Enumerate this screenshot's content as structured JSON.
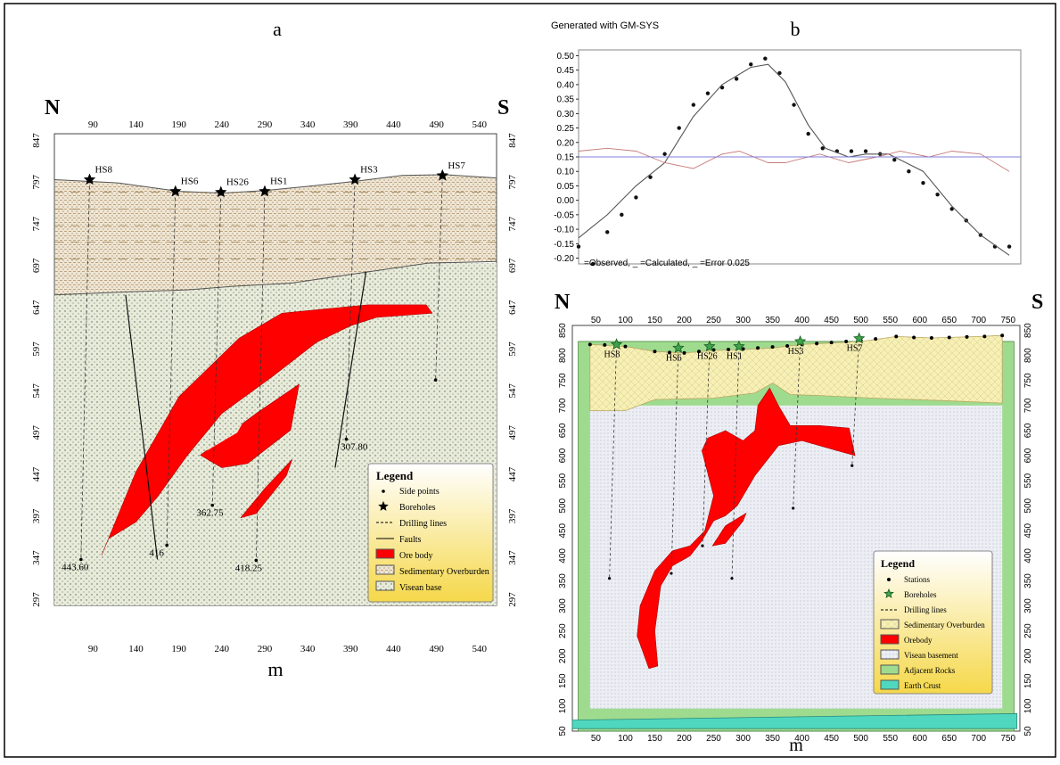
{
  "panel_labels": {
    "a": "a",
    "b": "b"
  },
  "chart_data": [
    {
      "id": "a",
      "type": "cross-section",
      "orientation": {
        "left": "N",
        "right": "S"
      },
      "xlabel": "m",
      "x_ticks": [
        90,
        140,
        190,
        240,
        290,
        340,
        390,
        440,
        490,
        540
      ],
      "y_ticks": [
        847,
        797,
        747,
        697,
        647,
        597,
        547,
        497,
        447,
        397,
        347,
        297
      ],
      "xlim": [
        45,
        560
      ],
      "ylim": [
        290,
        855
      ],
      "boreholes": [
        {
          "name": "HS8",
          "x": 86,
          "y": 800
        },
        {
          "name": "HS6",
          "x": 186,
          "y": 786
        },
        {
          "name": "HS26",
          "x": 239,
          "y": 785
        },
        {
          "name": "HS1",
          "x": 290,
          "y": 786
        },
        {
          "name": "HS3",
          "x": 395,
          "y": 800
        },
        {
          "name": "HS7",
          "x": 497,
          "y": 805
        }
      ],
      "depth_labels": [
        {
          "text": "443.60",
          "x": 68,
          "y": 345
        },
        {
          "text": "416",
          "x": 170,
          "y": 362
        },
        {
          "text": "362.75",
          "x": 225,
          "y": 410
        },
        {
          "text": "418.25",
          "x": 270,
          "y": 344
        },
        {
          "text": "307.80",
          "x": 393,
          "y": 489
        }
      ],
      "legend": {
        "title": "Legend",
        "items": [
          "Side points",
          "Boreholes",
          "Drilling lines",
          "Faults",
          "Ore body",
          "Sedimentary Overburden",
          "Visean base"
        ]
      },
      "colors": {
        "ore": "#ff0000",
        "overburden": "#efe7d7",
        "base": "#dfe6d1"
      }
    },
    {
      "id": "b",
      "type": "line",
      "header": "Generated with GM-SYS",
      "y_ticks": [
        "0.50",
        "0.45",
        "0.40",
        "0.35",
        "0.30",
        "0.25",
        "0.20",
        "0.15",
        "0.10",
        "0.05",
        "0.00",
        "-0.05",
        "-0.10",
        "-0.15",
        "-0.20"
      ],
      "ylim": [
        -0.22,
        0.52
      ],
      "xlim": [
        0,
        770
      ],
      "series": [
        {
          "name": "Observed",
          "style": "points",
          "x": [
            0,
            25,
            50,
            75,
            100,
            125,
            150,
            175,
            200,
            225,
            250,
            275,
            300,
            325,
            350,
            375,
            400,
            425,
            450,
            475,
            500,
            525,
            550,
            575,
            600,
            625,
            650,
            675,
            700,
            725,
            750
          ],
          "values": [
            -0.16,
            -0.22,
            -0.11,
            -0.05,
            0.01,
            0.08,
            0.16,
            0.25,
            0.33,
            0.37,
            0.39,
            0.42,
            0.47,
            0.49,
            0.44,
            0.33,
            0.23,
            0.18,
            0.17,
            0.17,
            0.17,
            0.16,
            0.14,
            0.1,
            0.06,
            0.02,
            -0.03,
            -0.07,
            -0.12,
            -0.16,
            -0.16
          ]
        },
        {
          "name": "Calculated",
          "style": "line",
          "x": [
            0,
            50,
            100,
            150,
            200,
            250,
            300,
            330,
            360,
            400,
            430,
            470,
            500,
            540,
            600,
            650,
            700,
            750
          ],
          "values": [
            -0.13,
            -0.05,
            0.05,
            0.13,
            0.29,
            0.4,
            0.46,
            0.47,
            0.41,
            0.26,
            0.18,
            0.15,
            0.16,
            0.16,
            0.1,
            -0.02,
            -0.12,
            -0.19
          ]
        },
        {
          "name": "Error 0.025",
          "style": "line",
          "x": [
            0,
            50,
            100,
            150,
            200,
            250,
            280,
            330,
            360,
            420,
            470,
            520,
            560,
            610,
            650,
            700,
            750
          ],
          "values": [
            0.17,
            0.18,
            0.17,
            0.13,
            0.11,
            0.16,
            0.17,
            0.13,
            0.13,
            0.16,
            0.13,
            0.15,
            0.17,
            0.15,
            0.17,
            0.16,
            0.1
          ]
        },
        {
          "name": "baseline",
          "style": "line",
          "x": [
            0,
            770
          ],
          "values": [
            0.15,
            0.15
          ]
        }
      ],
      "legend_text": "=Observed,  _ =Calculated,  _ =Error 0.025",
      "colors": {
        "observed": "#111111",
        "calculated": "#555555",
        "error": "#c77a7a",
        "baseline": "#7f7fd9"
      }
    },
    {
      "id": "c",
      "type": "model",
      "orientation": {
        "left": "N",
        "right": "S"
      },
      "xlabel": "m",
      "x_ticks": [
        50,
        100,
        150,
        200,
        250,
        300,
        350,
        400,
        450,
        500,
        550,
        600,
        650,
        700,
        750
      ],
      "y_ticks": [
        850,
        800,
        750,
        700,
        650,
        600,
        550,
        500,
        450,
        400,
        350,
        300,
        250,
        200,
        150,
        100,
        50
      ],
      "xlim": [
        10,
        770
      ],
      "ylim": [
        50,
        860
      ],
      "boreholes": [
        {
          "name": "HS8",
          "x": 85,
          "y": 822
        },
        {
          "name": "HS6",
          "x": 190,
          "y": 815
        },
        {
          "name": "HS26",
          "x": 243,
          "y": 818
        },
        {
          "name": "HS1",
          "x": 293,
          "y": 818
        },
        {
          "name": "HS3",
          "x": 397,
          "y": 828
        },
        {
          "name": "HS7",
          "x": 497,
          "y": 834
        }
      ],
      "legend": {
        "title": "Legend",
        "items": [
          "Stations",
          "Boreholes",
          "Drilling lines",
          "Sedimentary Overburden",
          "Orebody",
          "Visean basement",
          "Adjacent Rocks",
          "Earth Crust"
        ]
      },
      "colors": {
        "ore": "#ff0000",
        "overburden": "#f7f0b5",
        "basement": "#e8eaf0",
        "adjacent": "#9fdb8f",
        "crust": "#4fd7c0"
      }
    }
  ]
}
